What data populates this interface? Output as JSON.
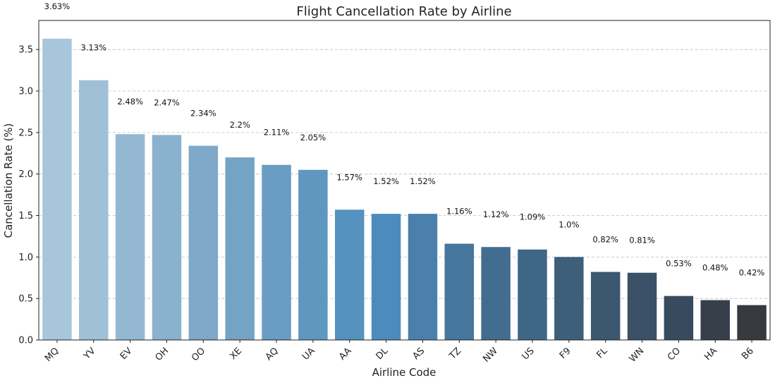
{
  "chart_data": {
    "type": "bar",
    "title": "Flight Cancellation Rate by Airline",
    "xlabel": "Airline Code",
    "ylabel": "Cancellation Rate (%)",
    "ylim": [
      0,
      3.85
    ],
    "yticks": [
      "0.0",
      "0.5",
      "1.0",
      "1.5",
      "2.0",
      "2.5",
      "3.0",
      "3.5"
    ],
    "grid": "y-dashed",
    "categories": [
      "MQ",
      "YV",
      "EV",
      "OH",
      "OO",
      "XE",
      "AQ",
      "UA",
      "AA",
      "DL",
      "AS",
      "TZ",
      "NW",
      "US",
      "F9",
      "FL",
      "WN",
      "CO",
      "HA",
      "B6"
    ],
    "values": [
      3.63,
      3.13,
      2.48,
      2.47,
      2.34,
      2.2,
      2.11,
      2.05,
      1.57,
      1.52,
      1.52,
      1.16,
      1.12,
      1.09,
      1.0,
      0.82,
      0.81,
      0.53,
      0.48,
      0.42
    ],
    "value_labels": [
      "3.63%",
      "3.13%",
      "2.48%",
      "2.47%",
      "2.34%",
      "2.2%",
      "2.11%",
      "2.05%",
      "1.57%",
      "1.52%",
      "1.52%",
      "1.16%",
      "1.12%",
      "1.09%",
      "1.0%",
      "0.82%",
      "0.81%",
      "0.53%",
      "0.48%",
      "0.42%"
    ],
    "colors": [
      "#a7c6db",
      "#9fc0d7",
      "#94b8d2",
      "#8ab1cd",
      "#7fa8c9",
      "#74a3c6",
      "#6a9dc2",
      "#5f97c0",
      "#5692bf",
      "#4e8bbd",
      "#4a80ab",
      "#46769c",
      "#436d90",
      "#406685",
      "#3e5f7a",
      "#3c5770",
      "#3a5167",
      "#384a5d",
      "#373f4b",
      "#36393d"
    ]
  }
}
